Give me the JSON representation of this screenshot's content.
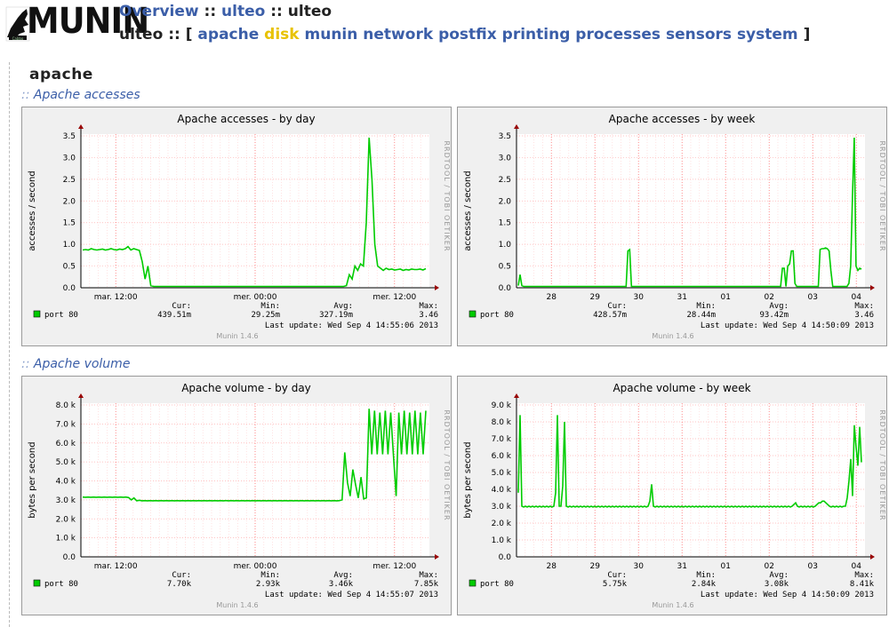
{
  "header": {
    "logo_text": "MUNIN",
    "breadcrumb": {
      "overview": "Overview",
      "sep1": "::",
      "domain": "ulteo",
      "sep2": "::",
      "host": "ulteo"
    },
    "nav": {
      "host": "ulteo",
      "sep": "::",
      "open_bracket": "[",
      "close_bracket": "]",
      "items": [
        {
          "label": "apache",
          "active": false
        },
        {
          "label": "disk",
          "active": true
        },
        {
          "label": "munin",
          "active": false
        },
        {
          "label": "network",
          "active": false
        },
        {
          "label": "postfix",
          "active": false
        },
        {
          "label": "printing",
          "active": false
        },
        {
          "label": "processes",
          "active": false
        },
        {
          "label": "sensors",
          "active": false
        },
        {
          "label": "system",
          "active": false
        }
      ]
    }
  },
  "page": {
    "title": "apache"
  },
  "sections": [
    {
      "prefix": "::",
      "title": "Apache accesses"
    },
    {
      "prefix": "::",
      "title": "Apache volume"
    }
  ],
  "graphs": [
    {
      "title": "Apache accesses - by day",
      "ylabel": "accesses / second",
      "side_label": "RRDTOOL / TOBI OETIKER",
      "y_ticks": [
        "0.0",
        "0.5",
        "1.0",
        "1.5",
        "2.0",
        "2.5",
        "3.0",
        "3.5"
      ],
      "y_max": 3.5,
      "x_labels": [
        "mar. 12:00",
        "mer. 00:00",
        "mer. 12:00"
      ],
      "series_name": "port 80",
      "stat_labels": {
        "cur": "Cur:",
        "min": "Min:",
        "avg": "Avg:",
        "max": "Max:"
      },
      "stats": {
        "cur": "439.51m",
        "min": "29.25m",
        "avg": "327.19m",
        "max": "3.46"
      },
      "last_update": "Last update: Wed Sep  4 14:55:06 2013",
      "footer": "Munin 1.4.6",
      "color": "#00cc00",
      "chart_data": {
        "type": "line",
        "x_range": "1.5 days, ending Wed Sep 4 14:55",
        "ylim": [
          0,
          3.5
        ],
        "values": [
          0.87,
          0.88,
          0.87,
          0.9,
          0.88,
          0.87,
          0.88,
          0.89,
          0.87,
          0.88,
          0.9,
          0.88,
          0.87,
          0.89,
          0.88,
          0.9,
          0.95,
          0.87,
          0.9,
          0.88,
          0.86,
          0.6,
          0.2,
          0.5,
          0.05,
          0.03,
          0.03,
          0.03,
          0.03,
          0.03,
          0.03,
          0.03,
          0.03,
          0.03,
          0.03,
          0.03,
          0.03,
          0.03,
          0.03,
          0.03,
          0.03,
          0.03,
          0.03,
          0.03,
          0.03,
          0.03,
          0.03,
          0.03,
          0.03,
          0.03,
          0.03,
          0.03,
          0.03,
          0.03,
          0.03,
          0.03,
          0.03,
          0.03,
          0.03,
          0.03,
          0.03,
          0.03,
          0.03,
          0.03,
          0.03,
          0.03,
          0.03,
          0.03,
          0.03,
          0.03,
          0.03,
          0.03,
          0.03,
          0.03,
          0.03,
          0.03,
          0.03,
          0.03,
          0.03,
          0.03,
          0.03,
          0.03,
          0.03,
          0.03,
          0.03,
          0.03,
          0.03,
          0.03,
          0.03,
          0.03,
          0.03,
          0.03,
          0.03,
          0.05,
          0.3,
          0.2,
          0.5,
          0.4,
          0.55,
          0.5,
          1.5,
          3.46,
          2.5,
          1.0,
          0.5,
          0.45,
          0.4,
          0.45,
          0.42,
          0.43,
          0.41,
          0.42,
          0.43,
          0.4,
          0.42,
          0.41,
          0.43,
          0.42,
          0.42,
          0.43,
          0.41,
          0.44
        ]
      }
    },
    {
      "title": "Apache accesses - by week",
      "ylabel": "accesses / second",
      "side_label": "RRDTOOL / TOBI OETIKER",
      "y_ticks": [
        "0.0",
        "0.5",
        "1.0",
        "1.5",
        "2.0",
        "2.5",
        "3.0",
        "3.5"
      ],
      "y_max": 3.5,
      "x_labels": [
        "28",
        "29",
        "30",
        "31",
        "01",
        "02",
        "03",
        "04"
      ],
      "series_name": "port 80",
      "stat_labels": {
        "cur": "Cur:",
        "min": "Min:",
        "avg": "Avg:",
        "max": "Max:"
      },
      "stats": {
        "cur": "428.57m",
        "min": "28.44m",
        "avg": "93.42m",
        "max": "3.46"
      },
      "last_update": "Last update: Wed Sep  4 14:50:09 2013",
      "footer": "Munin 1.4.6",
      "color": "#00cc00",
      "chart_data": {
        "type": "line",
        "x_range": "8 days, Aug 27 – Sep 4 2013",
        "ylim": [
          0,
          3.5
        ],
        "values": [
          0.05,
          0.3,
          0.05,
          0.03,
          0.03,
          0.03,
          0.03,
          0.03,
          0.03,
          0.03,
          0.03,
          0.03,
          0.03,
          0.03,
          0.03,
          0.03,
          0.03,
          0.03,
          0.03,
          0.03,
          0.03,
          0.03,
          0.03,
          0.03,
          0.03,
          0.03,
          0.03,
          0.03,
          0.03,
          0.03,
          0.03,
          0.03,
          0.03,
          0.03,
          0.03,
          0.03,
          0.03,
          0.03,
          0.03,
          0.03,
          0.03,
          0.03,
          0.03,
          0.03,
          0.03,
          0.03,
          0.03,
          0.03,
          0.03,
          0.03,
          0.03,
          0.03,
          0.03,
          0.03,
          0.03,
          0.03,
          0.03,
          0.03,
          0.03,
          0.03,
          0.03,
          0.85,
          0.88,
          0.03,
          0.03,
          0.03,
          0.03,
          0.03,
          0.03,
          0.03,
          0.03,
          0.03,
          0.03,
          0.03,
          0.03,
          0.03,
          0.03,
          0.03,
          0.03,
          0.03,
          0.03,
          0.03,
          0.03,
          0.03,
          0.03,
          0.03,
          0.03,
          0.03,
          0.03,
          0.03,
          0.03,
          0.03,
          0.03,
          0.03,
          0.03,
          0.03,
          0.03,
          0.03,
          0.03,
          0.03,
          0.03,
          0.03,
          0.03,
          0.03,
          0.03,
          0.03,
          0.03,
          0.03,
          0.03,
          0.03,
          0.03,
          0.03,
          0.03,
          0.03,
          0.03,
          0.03,
          0.03,
          0.03,
          0.03,
          0.03,
          0.03,
          0.03,
          0.03,
          0.03,
          0.03,
          0.03,
          0.03,
          0.03,
          0.03,
          0.03,
          0.03,
          0.03,
          0.03,
          0.03,
          0.03,
          0.03,
          0.03,
          0.03,
          0.03,
          0.03,
          0.03,
          0.03,
          0.03,
          0.03,
          0.03,
          0.03,
          0.03,
          0.45,
          0.45,
          0.03,
          0.5,
          0.55,
          0.85,
          0.85,
          0.1,
          0.03,
          0.03,
          0.03,
          0.03,
          0.03,
          0.03,
          0.03,
          0.03,
          0.03,
          0.03,
          0.03,
          0.03,
          0.03,
          0.88,
          0.9,
          0.9,
          0.92,
          0.9,
          0.85,
          0.4,
          0.03,
          0.03,
          0.03,
          0.03,
          0.03,
          0.03,
          0.03,
          0.03,
          0.03,
          0.1,
          0.5,
          2.1,
          3.46,
          0.5,
          0.4,
          0.45,
          0.43
        ]
      }
    },
    {
      "title": "Apache volume - by day",
      "ylabel": "bytes per second",
      "side_label": "RRDTOOL / TOBI OETIKER",
      "y_ticks": [
        "0.0",
        "1.0 k",
        "2.0 k",
        "3.0 k",
        "4.0 k",
        "5.0 k",
        "6.0 k",
        "7.0 k",
        "8.0 k"
      ],
      "y_max": 8000,
      "x_labels": [
        "mar. 12:00",
        "mer. 00:00",
        "mer. 12:00"
      ],
      "series_name": "port 80",
      "stat_labels": {
        "cur": "Cur:",
        "min": "Min:",
        "avg": "Avg:",
        "max": "Max:"
      },
      "stats": {
        "cur": "7.70k",
        "min": "2.93k",
        "avg": "3.46k",
        "max": "7.85k"
      },
      "last_update": "Last update: Wed Sep  4 14:55:07 2013",
      "footer": "Munin 1.4.6",
      "color": "#00cc00",
      "chart_data": {
        "type": "line",
        "x_range": "1.5 days, ending Wed Sep 4 14:55",
        "ylim": [
          0,
          8000
        ],
        "values": [
          3150,
          3140,
          3150,
          3140,
          3150,
          3140,
          3150,
          3140,
          3150,
          3140,
          3150,
          3140,
          3150,
          3140,
          3150,
          3140,
          3150,
          3120,
          3000,
          3100,
          2950,
          2980,
          2950,
          2960,
          2950,
          2960,
          2950,
          2960,
          2950,
          2960,
          2950,
          2960,
          2950,
          2960,
          2950,
          2960,
          2950,
          2960,
          2950,
          2960,
          2950,
          2960,
          2950,
          2960,
          2950,
          2960,
          2950,
          2960,
          2950,
          2960,
          2950,
          2960,
          2950,
          2960,
          2950,
          2960,
          2950,
          2960,
          2950,
          2960,
          2950,
          2960,
          2950,
          2960,
          2950,
          2960,
          2950,
          2960,
          2950,
          2960,
          2950,
          2960,
          2950,
          2960,
          2950,
          2960,
          2950,
          2960,
          2950,
          2960,
          2950,
          2960,
          2950,
          2960,
          2950,
          2960,
          2950,
          2960,
          2950,
          2960,
          2950,
          2960,
          2950,
          2960,
          2950,
          2960,
          3000,
          5500,
          3900,
          3200,
          4600,
          3800,
          3100,
          4200,
          3050,
          3100,
          7800,
          5400,
          7700,
          5400,
          7600,
          5400,
          7700,
          5400,
          7600,
          5400,
          3200,
          7600,
          5400,
          7700,
          5400,
          7600,
          5400,
          7700,
          5400,
          7600,
          5400,
          7700
        ]
      }
    },
    {
      "title": "Apache volume - by week",
      "ylabel": "bytes per second",
      "side_label": "RRDTOOL / TOBI OETIKER",
      "y_ticks": [
        "0.0",
        "1.0 k",
        "2.0 k",
        "3.0 k",
        "4.0 k",
        "5.0 k",
        "6.0 k",
        "7.0 k",
        "8.0 k",
        "9.0 k"
      ],
      "y_max": 9000,
      "x_labels": [
        "28",
        "29",
        "30",
        "31",
        "01",
        "02",
        "03",
        "04"
      ],
      "series_name": "port 80",
      "stat_labels": {
        "cur": "Cur:",
        "min": "Min:",
        "avg": "Avg:",
        "max": "Max:"
      },
      "stats": {
        "cur": "5.75k",
        "min": "2.84k",
        "avg": "3.08k",
        "max": "8.41k"
      },
      "last_update": "Last update: Wed Sep  4 14:50:09 2013",
      "footer": "Munin 1.4.6",
      "color": "#00cc00",
      "chart_data": {
        "type": "line",
        "x_range": "8 days, Aug 27 – Sep 4 2013",
        "ylim": [
          0,
          9000
        ],
        "values": [
          3800,
          8400,
          3000,
          2950,
          3000,
          2950,
          3000,
          2950,
          3000,
          2950,
          3000,
          2950,
          3000,
          2950,
          3000,
          2950,
          3000,
          2950,
          3000,
          2950,
          3000,
          3800,
          8400,
          3000,
          3000,
          4200,
          8000,
          3000,
          2950,
          3000,
          2950,
          3000,
          2950,
          3000,
          2950,
          3000,
          2950,
          3000,
          2950,
          3000,
          2950,
          3000,
          2950,
          3000,
          2950,
          3000,
          2950,
          3000,
          2950,
          3000,
          2950,
          3000,
          2950,
          3000,
          2950,
          3000,
          2950,
          3000,
          2950,
          3000,
          2950,
          3000,
          2950,
          3000,
          2950,
          3000,
          2950,
          3000,
          2950,
          3000,
          2950,
          3000,
          2950,
          3000,
          3300,
          4300,
          3000,
          2950,
          3000,
          2950,
          3000,
          2950,
          3000,
          2950,
          3000,
          2950,
          3000,
          2950,
          3000,
          2950,
          3000,
          2950,
          3000,
          2950,
          3000,
          2950,
          3000,
          2950,
          3000,
          2950,
          3000,
          2950,
          3000,
          2950,
          3000,
          2950,
          3000,
          2950,
          3000,
          2950,
          3000,
          2950,
          3000,
          2950,
          3000,
          2950,
          3000,
          2950,
          3000,
          2950,
          3000,
          2950,
          3000,
          2950,
          3000,
          2950,
          3000,
          2950,
          3000,
          2950,
          3000,
          2950,
          3000,
          2950,
          3000,
          2950,
          3000,
          2950,
          3000,
          2950,
          3000,
          2950,
          3000,
          2950,
          3000,
          2950,
          3000,
          2950,
          3000,
          2950,
          3000,
          2950,
          3000,
          2950,
          3000,
          3100,
          3200,
          3000,
          2950,
          3000,
          2950,
          3000,
          2950,
          3000,
          2950,
          3000,
          2950,
          3000,
          3100,
          3200,
          3200,
          3300,
          3300,
          3200,
          3100,
          3000,
          2950,
          3000,
          2950,
          3000,
          2950,
          3000,
          2950,
          3000,
          3000,
          3500,
          4500,
          5800,
          3600,
          7800,
          6500,
          5400,
          7700,
          5600
        ]
      }
    }
  ]
}
